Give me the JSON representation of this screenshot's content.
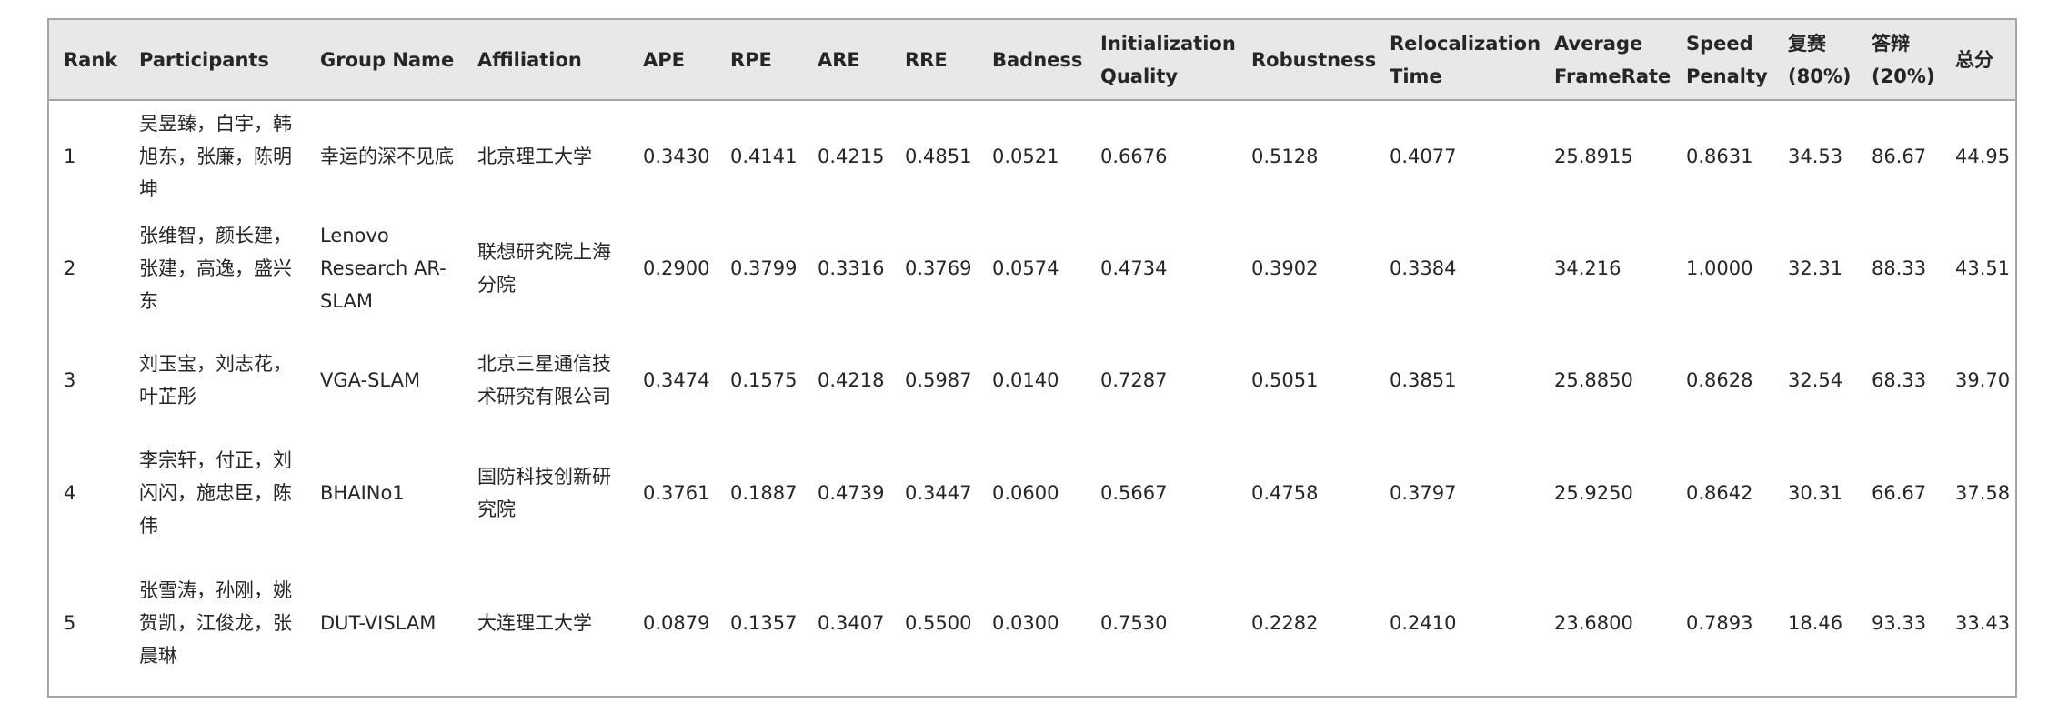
{
  "table": {
    "headers": {
      "rank": "Rank",
      "participants": "Participants",
      "group_name": "Group Name",
      "affiliation": "Affiliation",
      "ape": "APE",
      "rpe": "RPE",
      "are": "ARE",
      "rre": "RRE",
      "badness": "Badness",
      "initialization_quality": "Initialization Quality",
      "robustness": "Robustness",
      "relocalization_time": "Relocalization Time",
      "average_framerate": "Average FrameRate",
      "speed_penalty": "Speed Penalty",
      "rematch": "复赛(80%)",
      "defense": "答辩(20%)",
      "total": "总分"
    },
    "rows": [
      {
        "rank": "1",
        "participants": "吴昱臻，白宇，韩旭东，张廉，陈明坤",
        "group_name": "幸运的深不见底",
        "affiliation": "北京理工大学",
        "ape": "0.3430",
        "rpe": "0.4141",
        "are": "0.4215",
        "rre": "0.4851",
        "badness": "0.0521",
        "initialization_quality": "0.6676",
        "robustness": "0.5128",
        "relocalization_time": "0.4077",
        "average_framerate": "25.8915",
        "speed_penalty": "0.8631",
        "rematch": "34.53",
        "defense": "86.67",
        "total": "44.95"
      },
      {
        "rank": "2",
        "participants": "张维智，颜长建，张建，高逸，盛兴东",
        "group_name": "Lenovo Research AR-SLAM",
        "affiliation": "联想研究院上海分院",
        "ape": "0.2900",
        "rpe": "0.3799",
        "are": "0.3316",
        "rre": "0.3769",
        "badness": "0.0574",
        "initialization_quality": "0.4734",
        "robustness": "0.3902",
        "relocalization_time": "0.3384",
        "average_framerate": "34.216",
        "speed_penalty": "1.0000",
        "rematch": "32.31",
        "defense": "88.33",
        "total": "43.51"
      },
      {
        "rank": "3",
        "participants": "刘玉宝，刘志花，叶芷彤",
        "group_name": "VGA-SLAM",
        "affiliation": "北京三星通信技术研究有限公司",
        "ape": "0.3474",
        "rpe": "0.1575",
        "are": "0.4218",
        "rre": "0.5987",
        "badness": "0.0140",
        "initialization_quality": "0.7287",
        "robustness": "0.5051",
        "relocalization_time": "0.3851",
        "average_framerate": "25.8850",
        "speed_penalty": "0.8628",
        "rematch": "32.54",
        "defense": "68.33",
        "total": "39.70"
      },
      {
        "rank": "4",
        "participants": "李宗轩，付正，刘闪闪，施忠臣，陈伟",
        "group_name": "BHAINo1",
        "affiliation": "国防科技创新研究院",
        "ape": "0.3761",
        "rpe": "0.1887",
        "are": "0.4739",
        "rre": "0.3447",
        "badness": "0.0600",
        "initialization_quality": "0.5667",
        "robustness": "0.4758",
        "relocalization_time": "0.3797",
        "average_framerate": "25.9250",
        "speed_penalty": "0.8642",
        "rematch": "30.31",
        "defense": "66.67",
        "total": "37.58"
      },
      {
        "rank": "5",
        "participants": "张雪涛，孙刚，姚贺凯，江俊龙，张晨琳",
        "group_name": "DUT-VISLAM",
        "affiliation": "大连理工大学",
        "ape": "0.0879",
        "rpe": "0.1357",
        "are": "0.3407",
        "rre": "0.5500",
        "badness": "0.0300",
        "initialization_quality": "0.7530",
        "robustness": "0.2282",
        "relocalization_time": "0.2410",
        "average_framerate": "23.6800",
        "speed_penalty": "0.7893",
        "rematch": "18.46",
        "defense": "93.33",
        "total": "33.43"
      }
    ]
  }
}
